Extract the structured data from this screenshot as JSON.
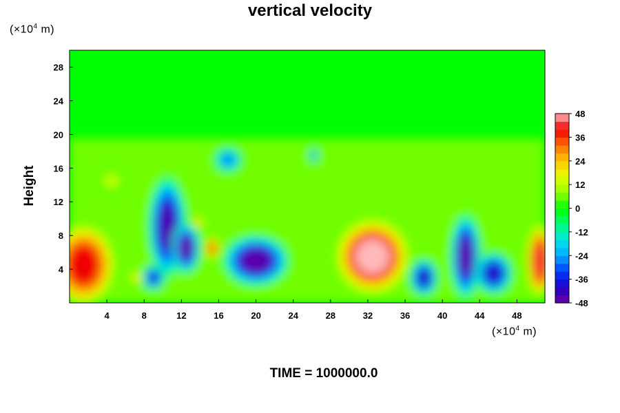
{
  "chart_data": {
    "type": "heatmap",
    "title": "vertical velocity",
    "ylabel": "Height",
    "y_unit_label": {
      "prefix": "(×10",
      "exp": "4",
      "suffix": " m)"
    },
    "x_unit_label": {
      "prefix": "(×10",
      "exp": "4",
      "suffix": " m)"
    },
    "xlim": [
      0,
      51
    ],
    "ylim": [
      0,
      30
    ],
    "x_ticks": [
      4,
      8,
      12,
      16,
      20,
      24,
      28,
      32,
      36,
      40,
      44,
      48
    ],
    "y_ticks": [
      4,
      8,
      12,
      16,
      20,
      24,
      28
    ],
    "colorbar": {
      "min": -48,
      "max": 48,
      "step": 4,
      "tick_values": [
        48,
        36,
        24,
        12,
        0,
        -12,
        -24,
        -36,
        -48
      ],
      "tick_labels": [
        "48",
        "36",
        "24",
        "12",
        "0",
        "-12",
        "-24",
        "-36",
        "-48"
      ]
    },
    "features": [
      {
        "kind": "updraft",
        "x": 1.5,
        "y": 4.5,
        "rx": 3.5,
        "ry": 5.0,
        "peak": 40
      },
      {
        "kind": "updraft",
        "x": 32.5,
        "y": 5.5,
        "rx": 4.0,
        "ry": 4.5,
        "peak": 48
      },
      {
        "kind": "updraft",
        "x": 50.5,
        "y": 5.0,
        "rx": 1.5,
        "ry": 4.5,
        "peak": 42
      },
      {
        "kind": "updraft",
        "x": 15.3,
        "y": 6.5,
        "rx": 0.9,
        "ry": 1.3,
        "peak": 34
      },
      {
        "kind": "updraft",
        "x": 13.8,
        "y": 9.5,
        "rx": 0.6,
        "ry": 0.8,
        "peak": 24
      },
      {
        "kind": "updraft",
        "x": 7.2,
        "y": 3.0,
        "rx": 0.8,
        "ry": 0.8,
        "peak": 20
      },
      {
        "kind": "updraft",
        "x": 4.5,
        "y": 14.5,
        "rx": 1.5,
        "ry": 1.5,
        "peak": 12
      },
      {
        "kind": "downdraft",
        "x": 10.5,
        "y": 9.0,
        "rx": 2.0,
        "ry": 6.0,
        "peak": -44
      },
      {
        "kind": "downdraft",
        "x": 12.5,
        "y": 6.5,
        "rx": 1.5,
        "ry": 3.0,
        "peak": -46
      },
      {
        "kind": "downdraft",
        "x": 9.0,
        "y": 3.0,
        "rx": 1.2,
        "ry": 1.5,
        "peak": -38
      },
      {
        "kind": "downdraft",
        "x": 20.0,
        "y": 5.0,
        "rx": 3.5,
        "ry": 3.0,
        "peak": -46
      },
      {
        "kind": "downdraft",
        "x": 38.0,
        "y": 3.0,
        "rx": 1.5,
        "ry": 2.2,
        "peak": -40
      },
      {
        "kind": "downdraft",
        "x": 42.5,
        "y": 5.5,
        "rx": 1.6,
        "ry": 5.0,
        "peak": -46
      },
      {
        "kind": "downdraft",
        "x": 45.5,
        "y": 3.5,
        "rx": 2.0,
        "ry": 2.5,
        "peak": -40
      },
      {
        "kind": "downdraft",
        "x": 17.0,
        "y": 17.0,
        "rx": 1.5,
        "ry": 1.5,
        "peak": -26
      },
      {
        "kind": "downdraft",
        "x": 26.2,
        "y": 17.5,
        "rx": 0.4,
        "ry": 0.9,
        "peak": -30
      }
    ]
  },
  "footer": {
    "time_label": "TIME = 1000000.0"
  }
}
